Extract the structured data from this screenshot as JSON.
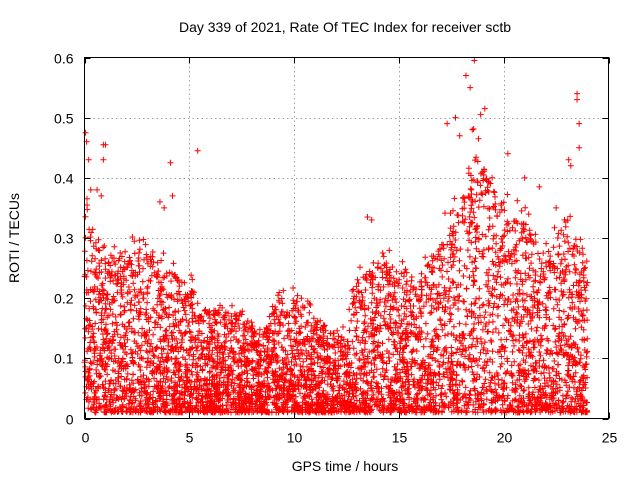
{
  "chart_data": {
    "type": "scatter",
    "title": "Day 339 of 2021, Rate Of TEC Index for receiver sctb",
    "xlabel": "GPS time / hours",
    "ylabel": "ROTI / TECUs",
    "xlim": [
      0,
      25
    ],
    "ylim": [
      0,
      0.6
    ],
    "x_ticks": [
      0,
      5,
      10,
      15,
      20,
      25
    ],
    "y_ticks": [
      0,
      0.1,
      0.2,
      0.3,
      0.4,
      0.5,
      0.6
    ],
    "x_tick_labels": [
      "0",
      "5",
      "10",
      "15",
      "20",
      "25"
    ],
    "y_tick_labels": [
      "0",
      "0.1",
      "0.2",
      "0.3",
      "0.4",
      "0.5",
      "0.6"
    ],
    "grid": true,
    "marker": "plus",
    "color": "#ff0000",
    "envelope_hours": [
      0,
      0.5,
      1,
      2,
      3,
      4,
      5,
      6,
      7,
      8,
      8.5,
      9,
      10,
      11,
      12,
      12.5,
      13,
      14,
      15,
      16,
      17,
      18,
      18.5,
      19,
      20,
      21,
      22,
      23,
      24
    ],
    "envelope_max": [
      0.4,
      0.3,
      0.27,
      0.28,
      0.27,
      0.25,
      0.22,
      0.18,
      0.18,
      0.16,
      0.13,
      0.19,
      0.2,
      0.17,
      0.14,
      0.15,
      0.23,
      0.26,
      0.25,
      0.23,
      0.3,
      0.36,
      0.45,
      0.42,
      0.36,
      0.33,
      0.27,
      0.33,
      0.25
    ],
    "outliers": [
      {
        "x": 0.05,
        "y": 0.475
      },
      {
        "x": 0.1,
        "y": 0.46
      },
      {
        "x": 0.2,
        "y": 0.43
      },
      {
        "x": 0.3,
        "y": 0.38
      },
      {
        "x": 0.6,
        "y": 0.38
      },
      {
        "x": 0.9,
        "y": 0.455
      },
      {
        "x": 1.0,
        "y": 0.455
      },
      {
        "x": 0.9,
        "y": 0.43
      },
      {
        "x": 0.8,
        "y": 0.37
      },
      {
        "x": 4.1,
        "y": 0.425
      },
      {
        "x": 5.4,
        "y": 0.445
      },
      {
        "x": 3.8,
        "y": 0.35
      },
      {
        "x": 3.6,
        "y": 0.36
      },
      {
        "x": 4.2,
        "y": 0.37
      },
      {
        "x": 13.5,
        "y": 0.335
      },
      {
        "x": 13.7,
        "y": 0.33
      },
      {
        "x": 17.3,
        "y": 0.49
      },
      {
        "x": 17.7,
        "y": 0.5
      },
      {
        "x": 18.2,
        "y": 0.57
      },
      {
        "x": 18.6,
        "y": 0.595
      },
      {
        "x": 18.4,
        "y": 0.55
      },
      {
        "x": 18.9,
        "y": 0.505
      },
      {
        "x": 19.1,
        "y": 0.515
      },
      {
        "x": 18.5,
        "y": 0.48
      },
      {
        "x": 18.8,
        "y": 0.465
      },
      {
        "x": 17.9,
        "y": 0.47
      },
      {
        "x": 20.2,
        "y": 0.44
      },
      {
        "x": 21.0,
        "y": 0.4
      },
      {
        "x": 21.7,
        "y": 0.385
      },
      {
        "x": 23.5,
        "y": 0.54
      },
      {
        "x": 23.5,
        "y": 0.53
      },
      {
        "x": 23.6,
        "y": 0.49
      },
      {
        "x": 23.6,
        "y": 0.45
      },
      {
        "x": 23.1,
        "y": 0.43
      },
      {
        "x": 23.2,
        "y": 0.42
      },
      {
        "x": 22.5,
        "y": 0.35
      }
    ],
    "noise_seed": 339,
    "noise_count": 5200
  }
}
